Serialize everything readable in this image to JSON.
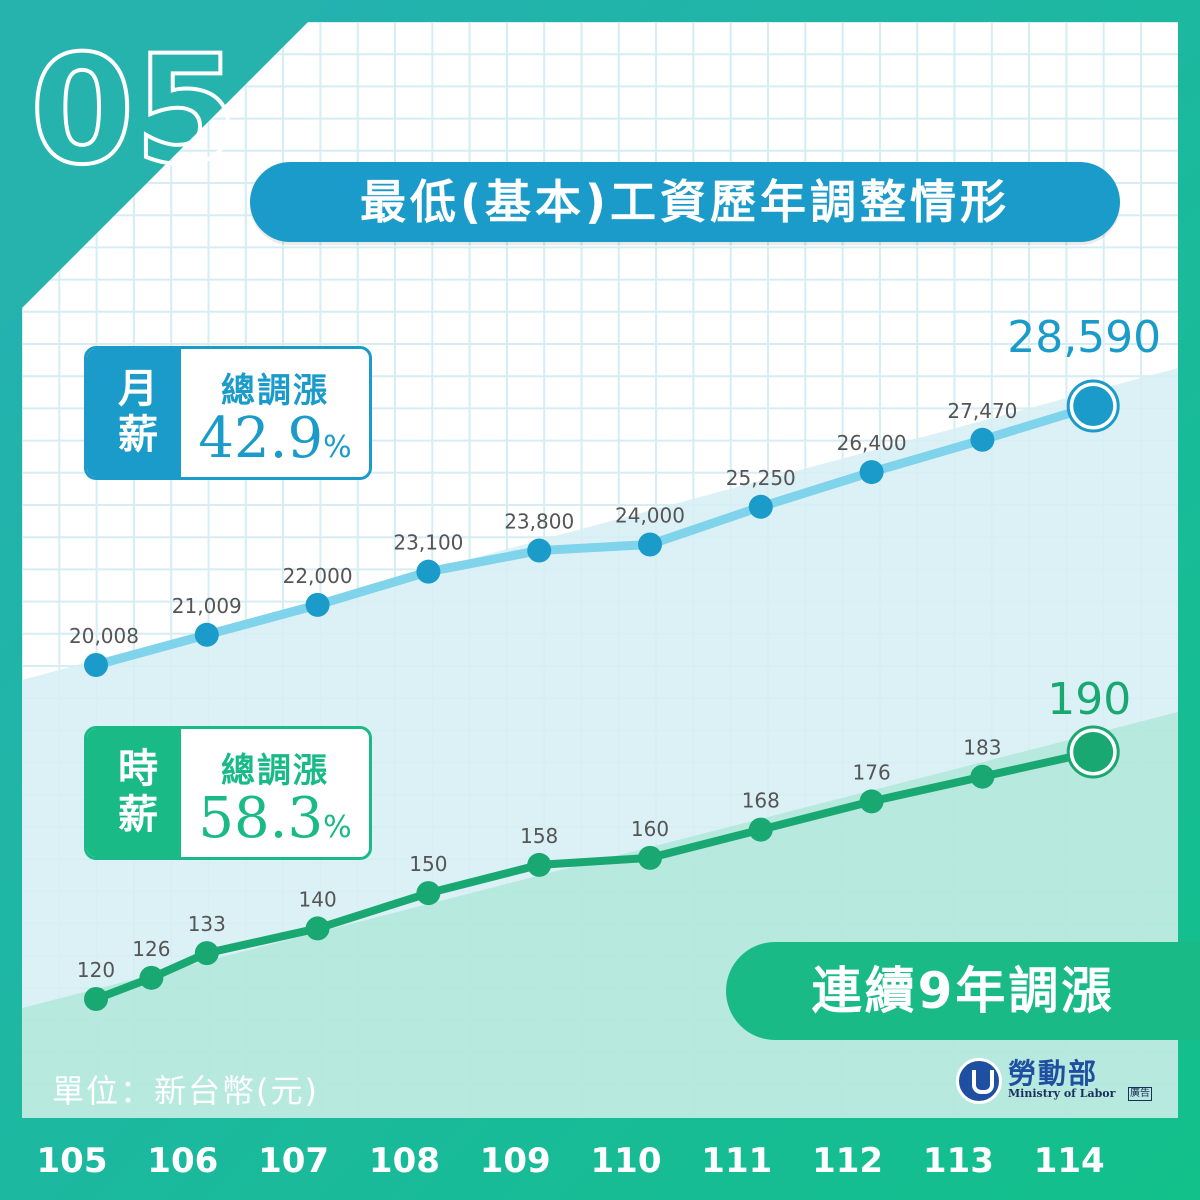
{
  "badge_number": "05",
  "title": "最低(基本)工資歷年調整情形",
  "monthly_box": {
    "tag": "月薪",
    "label": "總調漲",
    "value": "42.9",
    "unit": "%"
  },
  "hourly_box": {
    "tag": "時薪",
    "label": "總調漲",
    "value": "58.3",
    "unit": "%"
  },
  "banner": "連續9年調漲",
  "unit_note": "單位：新台幣(元)",
  "logo": {
    "name": "勞動部",
    "english": "Ministry of Labor",
    "ad_tag": "廣告",
    "icon": "ministry-emblem-icon"
  },
  "colors": {
    "frame_outer": "#2db8a8",
    "monthly": "#1b9bc9",
    "monthly_line": "#7fd3ea",
    "hourly": "#1aba86",
    "hourly_line": "#1aa872"
  },
  "chart_data": [
    {
      "type": "line",
      "name": "monthly",
      "x": [
        "105",
        "106",
        "107",
        "108",
        "109",
        "110",
        "111",
        "112",
        "113",
        "114"
      ],
      "values": [
        20008,
        21009,
        22000,
        23100,
        23800,
        24000,
        25250,
        26400,
        27470,
        28590
      ],
      "labels": [
        "20,008",
        "21,009",
        "22,000",
        "23,100",
        "23,800",
        "24,000",
        "25,250",
        "26,400",
        "27,470",
        "28,590"
      ]
    },
    {
      "type": "line",
      "name": "hourly",
      "x": [
        "105",
        "105.5",
        "106",
        "107",
        "108",
        "109",
        "110",
        "111",
        "112",
        "113",
        "114"
      ],
      "values": [
        120,
        126,
        133,
        140,
        150,
        158,
        160,
        168,
        176,
        183,
        190
      ],
      "labels": [
        "120",
        "126",
        "133",
        "140",
        "150",
        "158",
        "160",
        "168",
        "176",
        "183",
        "190"
      ]
    }
  ],
  "x_axis_labels": [
    "105",
    "106",
    "107",
    "108",
    "109",
    "110",
    "111",
    "112",
    "113",
    "114"
  ]
}
